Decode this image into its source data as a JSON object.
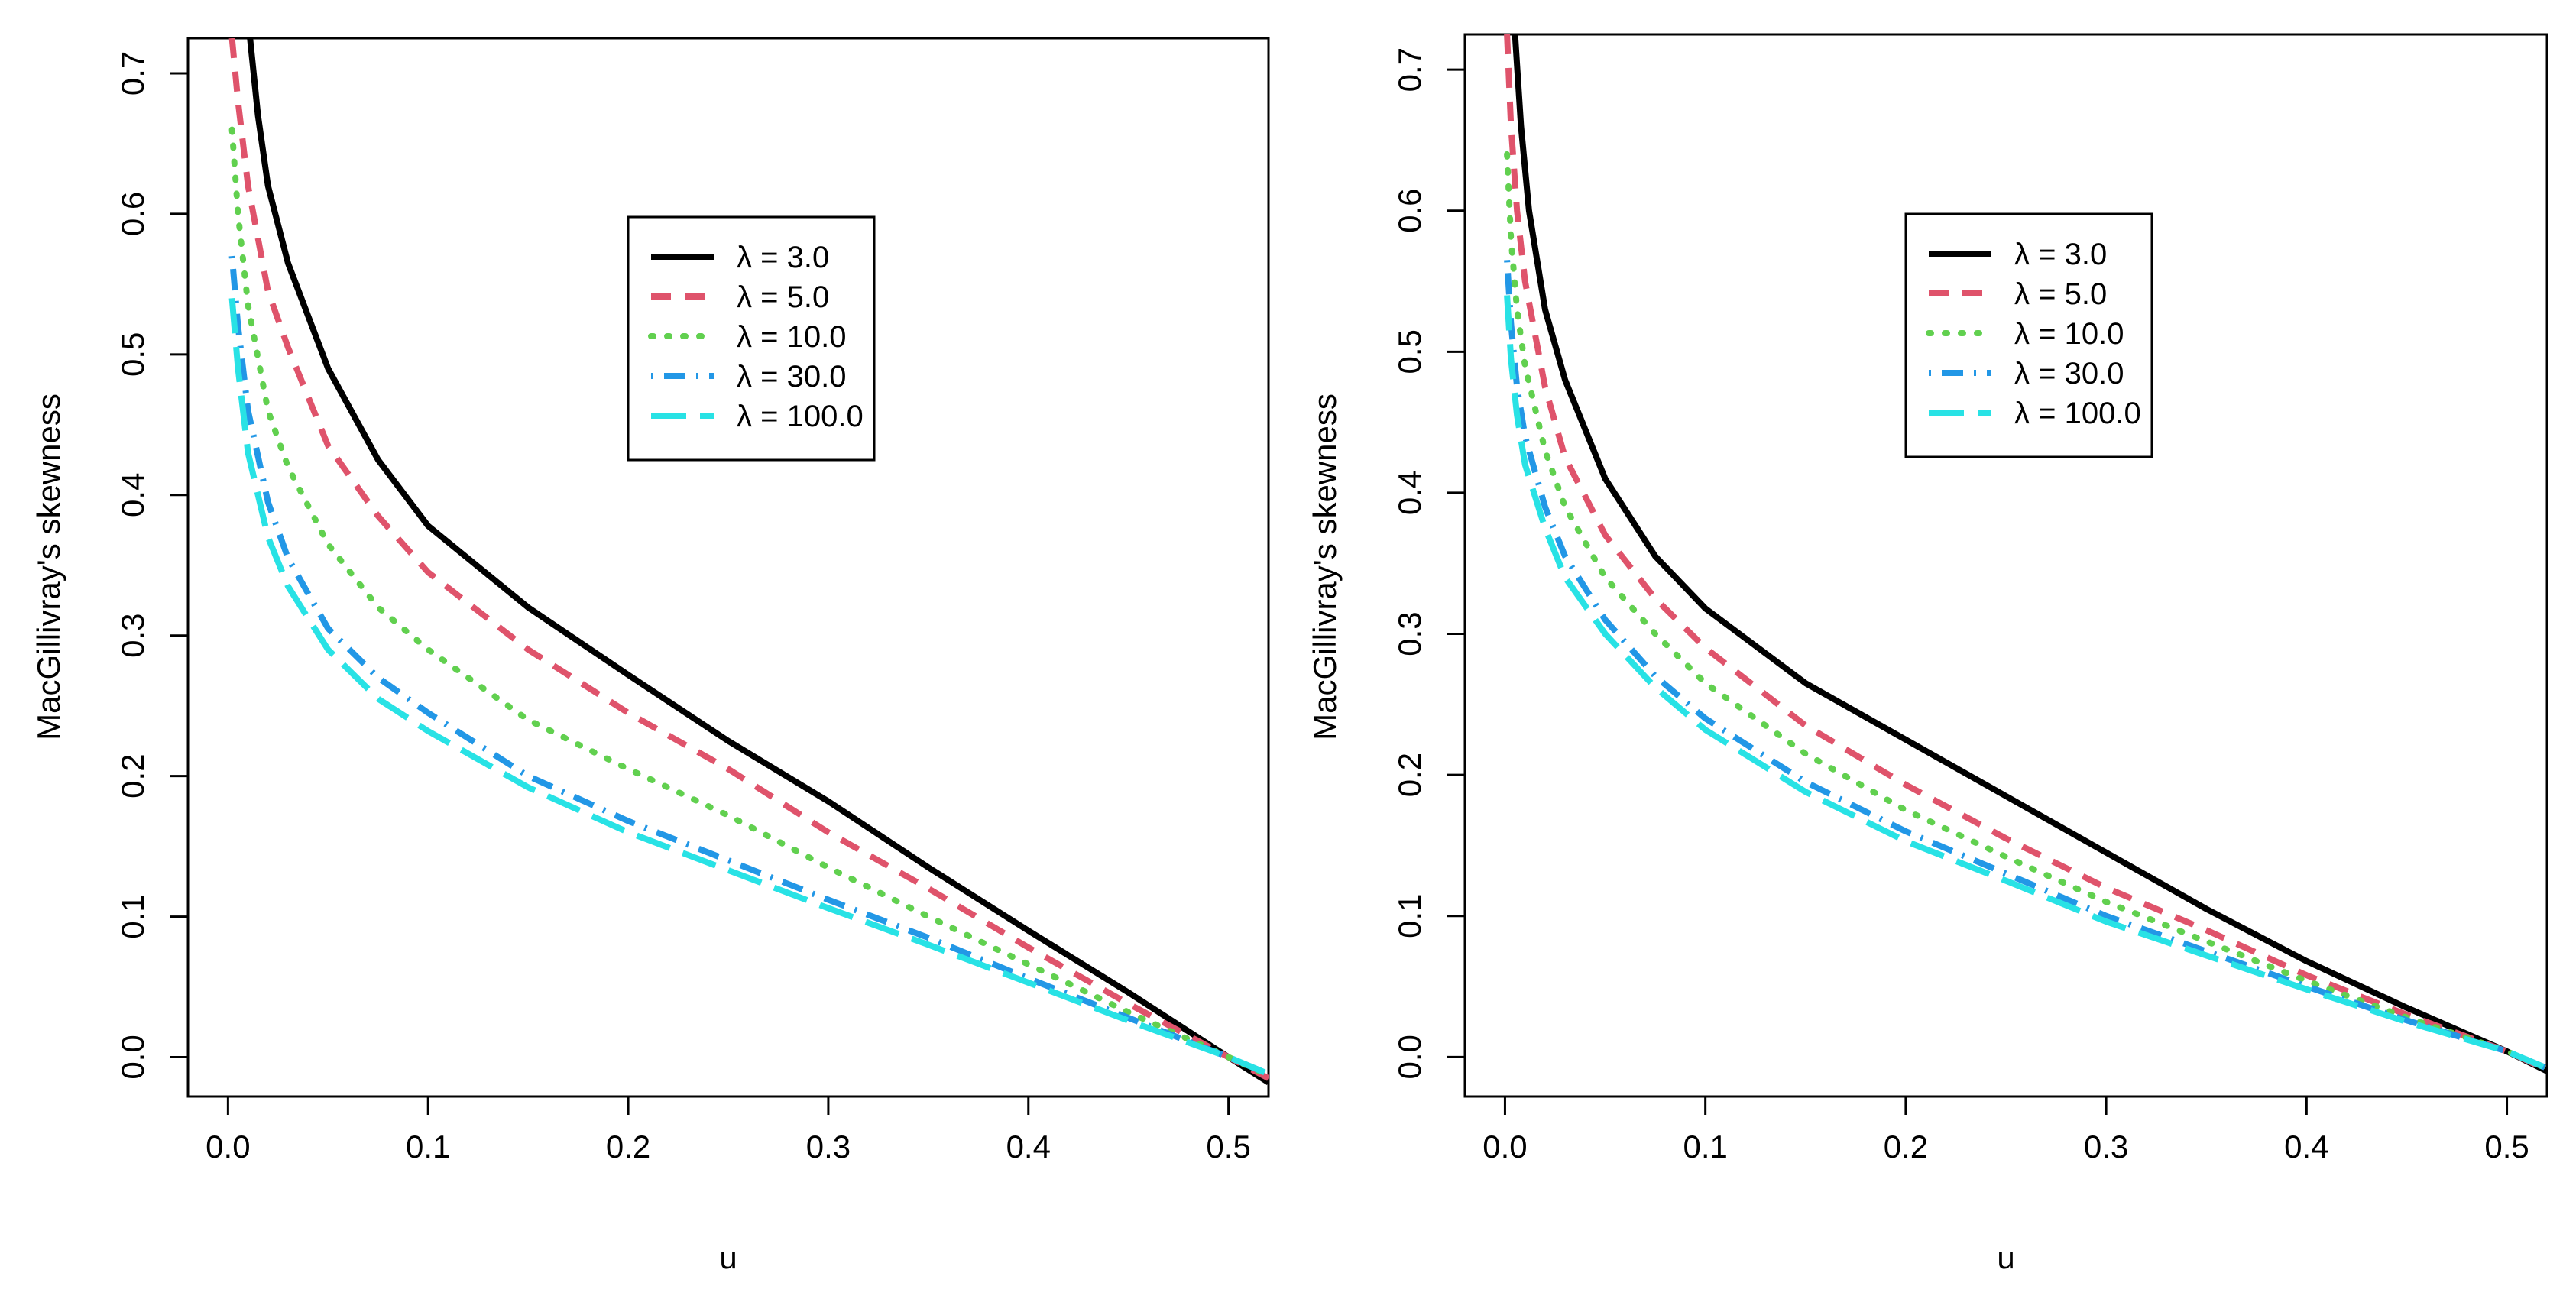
{
  "chart_data": [
    {
      "type": "line",
      "xlabel": "u",
      "ylabel": "MacGillivray's skewness",
      "xlim": [
        -0.02,
        0.52
      ],
      "ylim": [
        -0.028,
        0.725
      ],
      "xticks": [
        0.0,
        0.1,
        0.2,
        0.3,
        0.4,
        0.5
      ],
      "xtick_labels": [
        "0.0",
        "0.1",
        "0.2",
        "0.3",
        "0.4",
        "0.5"
      ],
      "yticks": [
        0.0,
        0.1,
        0.2,
        0.3,
        0.4,
        0.5,
        0.6,
        0.7
      ],
      "ytick_labels": [
        "0.0",
        "0.1",
        "0.2",
        "0.3",
        "0.4",
        "0.5",
        "0.6",
        "0.7"
      ],
      "legend_position": "top-center",
      "series": [
        {
          "name": "λ = 3.0",
          "lambda_label": "3.0",
          "color": "#000000",
          "dash": "solid",
          "x": [
            0.011,
            0.015,
            0.02,
            0.03,
            0.05,
            0.075,
            0.1,
            0.15,
            0.2,
            0.25,
            0.3,
            0.35,
            0.4,
            0.45,
            0.5,
            0.52
          ],
          "y": [
            0.725,
            0.67,
            0.62,
            0.565,
            0.49,
            0.425,
            0.378,
            0.32,
            0.272,
            0.225,
            0.182,
            0.135,
            0.09,
            0.046,
            0.0,
            -0.018
          ]
        },
        {
          "name": "λ = 5.0",
          "lambda_label": "5.0",
          "color": "#df536b",
          "dash": "dash",
          "x": [
            0.002,
            0.005,
            0.01,
            0.02,
            0.03,
            0.05,
            0.075,
            0.1,
            0.15,
            0.2,
            0.25,
            0.3,
            0.35,
            0.4,
            0.45,
            0.5,
            0.52
          ],
          "y": [
            0.725,
            0.68,
            0.62,
            0.545,
            0.505,
            0.435,
            0.385,
            0.345,
            0.29,
            0.245,
            0.205,
            0.16,
            0.12,
            0.078,
            0.038,
            0.0,
            -0.015
          ]
        },
        {
          "name": "λ = 10.0",
          "lambda_label": "10.0",
          "color": "#61d04f",
          "dash": "dot",
          "x": [
            0.002,
            0.005,
            0.01,
            0.02,
            0.03,
            0.05,
            0.075,
            0.1,
            0.15,
            0.2,
            0.25,
            0.3,
            0.35,
            0.4,
            0.45,
            0.5,
            0.52
          ],
          "y": [
            0.66,
            0.6,
            0.535,
            0.46,
            0.42,
            0.365,
            0.32,
            0.29,
            0.24,
            0.205,
            0.172,
            0.135,
            0.1,
            0.066,
            0.032,
            0.0,
            -0.013
          ]
        },
        {
          "name": "λ = 30.0",
          "lambda_label": "30.0",
          "color": "#2297e6",
          "dash": "dashdot",
          "x": [
            0.002,
            0.005,
            0.01,
            0.02,
            0.03,
            0.05,
            0.075,
            0.1,
            0.15,
            0.2,
            0.25,
            0.3,
            0.35,
            0.4,
            0.45,
            0.5,
            0.52
          ],
          "y": [
            0.57,
            0.52,
            0.46,
            0.395,
            0.355,
            0.305,
            0.27,
            0.245,
            0.2,
            0.168,
            0.14,
            0.112,
            0.085,
            0.056,
            0.028,
            0.0,
            -0.012
          ]
        },
        {
          "name": "λ = 100.0",
          "lambda_label": "100.0",
          "color": "#28e2e5",
          "dash": "longdash",
          "x": [
            0.002,
            0.005,
            0.01,
            0.02,
            0.03,
            0.05,
            0.075,
            0.1,
            0.15,
            0.2,
            0.25,
            0.3,
            0.35,
            0.4,
            0.45,
            0.5,
            0.52
          ],
          "y": [
            0.54,
            0.49,
            0.43,
            0.37,
            0.335,
            0.29,
            0.255,
            0.232,
            0.192,
            0.16,
            0.133,
            0.106,
            0.08,
            0.053,
            0.026,
            0.0,
            -0.012
          ]
        }
      ]
    },
    {
      "type": "line",
      "xlabel": "u",
      "ylabel": "MacGillivray's skewness",
      "xlim": [
        -0.02,
        0.52
      ],
      "ylim": [
        -0.028,
        0.725
      ],
      "xticks": [
        0.0,
        0.1,
        0.2,
        0.3,
        0.4,
        0.5
      ],
      "xtick_labels": [
        "0.0",
        "0.1",
        "0.2",
        "0.3",
        "0.4",
        "0.5"
      ],
      "yticks": [
        0.0,
        0.1,
        0.2,
        0.3,
        0.4,
        0.5,
        0.6,
        0.7
      ],
      "ytick_labels": [
        "0.0",
        "0.1",
        "0.2",
        "0.3",
        "0.4",
        "0.5",
        "0.6",
        "0.7"
      ],
      "legend_position": "top-center",
      "series": [
        {
          "name": "λ = 3.0",
          "lambda_label": "3.0",
          "color": "#000000",
          "dash": "solid",
          "x": [
            0.005,
            0.008,
            0.012,
            0.02,
            0.03,
            0.05,
            0.075,
            0.1,
            0.15,
            0.2,
            0.25,
            0.3,
            0.35,
            0.4,
            0.45,
            0.5,
            0.52
          ],
          "y": [
            0.725,
            0.66,
            0.6,
            0.53,
            0.48,
            0.41,
            0.355,
            0.318,
            0.265,
            0.225,
            0.185,
            0.145,
            0.105,
            0.068,
            0.035,
            0.004,
            -0.01
          ]
        },
        {
          "name": "λ = 5.0",
          "lambda_label": "5.0",
          "color": "#df536b",
          "dash": "dash",
          "x": [
            0.001,
            0.003,
            0.006,
            0.01,
            0.02,
            0.03,
            0.05,
            0.075,
            0.1,
            0.15,
            0.2,
            0.25,
            0.3,
            0.35,
            0.4,
            0.45,
            0.5,
            0.52
          ],
          "y": [
            0.725,
            0.66,
            0.6,
            0.55,
            0.475,
            0.425,
            0.37,
            0.325,
            0.29,
            0.235,
            0.193,
            0.155,
            0.12,
            0.09,
            0.058,
            0.03,
            0.004,
            -0.009
          ]
        },
        {
          "name": "λ = 10.0",
          "lambda_label": "10.0",
          "color": "#61d04f",
          "dash": "dot",
          "x": [
            0.001,
            0.003,
            0.006,
            0.01,
            0.02,
            0.03,
            0.05,
            0.075,
            0.1,
            0.15,
            0.2,
            0.25,
            0.3,
            0.35,
            0.4,
            0.45,
            0.5,
            0.52
          ],
          "y": [
            0.64,
            0.58,
            0.53,
            0.49,
            0.43,
            0.39,
            0.34,
            0.3,
            0.265,
            0.215,
            0.175,
            0.142,
            0.11,
            0.082,
            0.054,
            0.028,
            0.004,
            -0.008
          ]
        },
        {
          "name": "λ = 30.0",
          "lambda_label": "30.0",
          "color": "#2297e6",
          "dash": "dashdot",
          "x": [
            0.001,
            0.003,
            0.006,
            0.01,
            0.02,
            0.03,
            0.05,
            0.075,
            0.1,
            0.15,
            0.2,
            0.25,
            0.3,
            0.35,
            0.4,
            0.45,
            0.5,
            0.52
          ],
          "y": [
            0.565,
            0.52,
            0.475,
            0.44,
            0.39,
            0.355,
            0.31,
            0.27,
            0.24,
            0.195,
            0.16,
            0.13,
            0.1,
            0.075,
            0.05,
            0.026,
            0.004,
            -0.008
          ]
        },
        {
          "name": "λ = 100.0",
          "lambda_label": "100.0",
          "color": "#28e2e5",
          "dash": "longdash",
          "x": [
            0.001,
            0.003,
            0.006,
            0.01,
            0.02,
            0.03,
            0.05,
            0.075,
            0.1,
            0.15,
            0.2,
            0.25,
            0.3,
            0.35,
            0.4,
            0.45,
            0.5,
            0.52
          ],
          "y": [
            0.54,
            0.495,
            0.455,
            0.42,
            0.375,
            0.34,
            0.3,
            0.262,
            0.232,
            0.188,
            0.153,
            0.125,
            0.096,
            0.072,
            0.048,
            0.025,
            0.004,
            -0.008
          ]
        }
      ]
    }
  ]
}
